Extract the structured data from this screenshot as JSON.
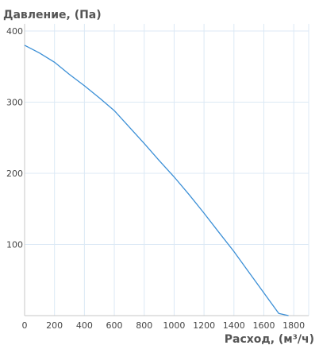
{
  "chart_data": {
    "type": "line",
    "ylabel": "Давление, (Па)",
    "xlabel": "Расход, (м³/ч)",
    "xlim": [
      0,
      1900
    ],
    "ylim": [
      0,
      410
    ],
    "x_ticks": [
      0,
      200,
      400,
      600,
      800,
      1000,
      1200,
      1400,
      1600,
      1800
    ],
    "y_ticks": [
      100,
      200,
      300,
      400
    ],
    "grid": true,
    "series": [
      {
        "color": "#3b8fd6",
        "x": [
          0,
          100,
          200,
          300,
          400,
          500,
          600,
          700,
          800,
          900,
          1000,
          1100,
          1200,
          1300,
          1400,
          1500,
          1600,
          1700,
          1765
        ],
        "y": [
          380,
          369,
          356,
          339,
          323,
          306,
          288,
          265,
          242,
          218,
          195,
          170,
          144,
          117,
          90,
          61,
          32,
          3,
          0
        ]
      }
    ]
  }
}
